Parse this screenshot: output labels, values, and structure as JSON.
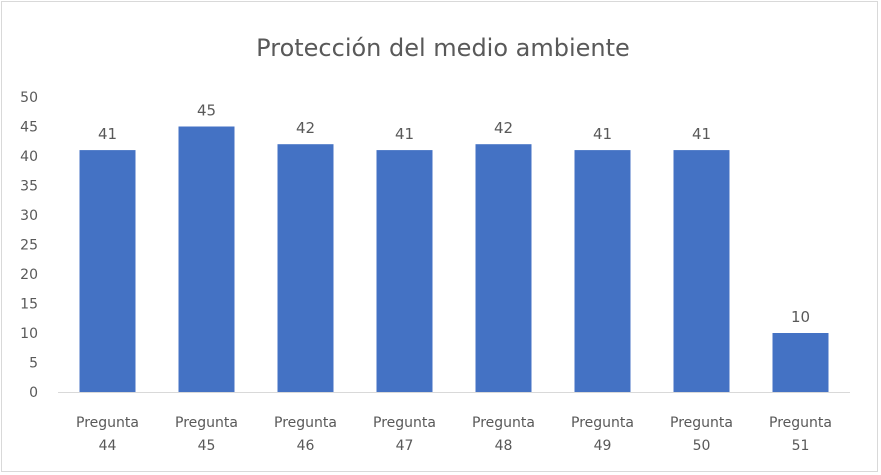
{
  "chart_data": {
    "type": "bar",
    "title": "Protección del medio ambiente",
    "categories": [
      [
        "Pregunta",
        "44"
      ],
      [
        "Pregunta",
        "45"
      ],
      [
        "Pregunta",
        "46"
      ],
      [
        "Pregunta",
        "47"
      ],
      [
        "Pregunta",
        "48"
      ],
      [
        "Pregunta",
        "49"
      ],
      [
        "Pregunta",
        "50"
      ],
      [
        "Pregunta",
        "51"
      ]
    ],
    "values": [
      41,
      45,
      42,
      41,
      42,
      41,
      41,
      10
    ],
    "data_labels": [
      "41",
      "45",
      "42",
      "41",
      "42",
      "41",
      "41",
      "10"
    ],
    "yticks": [
      "0",
      "5",
      "10",
      "15",
      "20",
      "25",
      "30",
      "35",
      "40",
      "45",
      "50"
    ],
    "ylim": [
      0,
      50
    ],
    "xlabel": "",
    "ylabel": "",
    "grid": false,
    "legend": "none",
    "bar_color": "#4472c4"
  }
}
